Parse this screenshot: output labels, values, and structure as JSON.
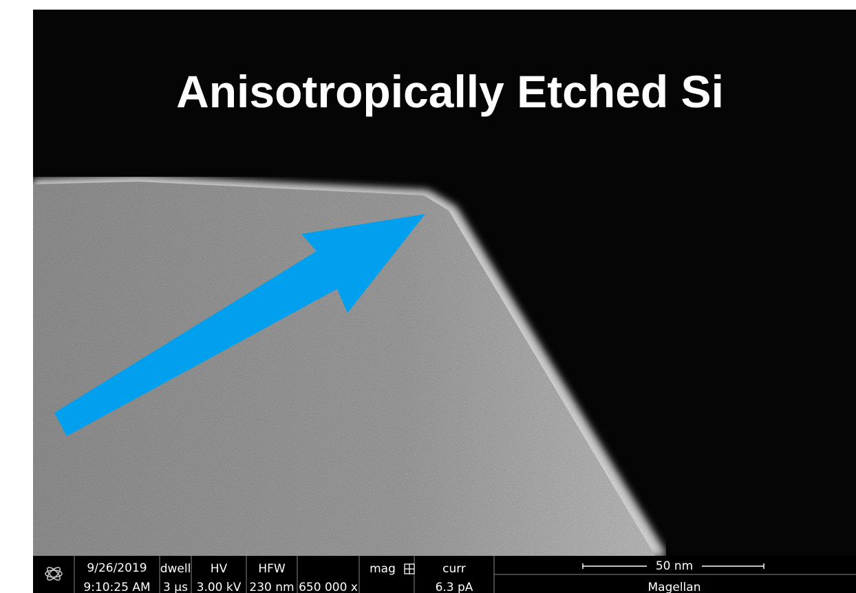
{
  "title": "Anisotropically Etched Si",
  "info_bar": {
    "date": "9/26/2019",
    "time": "9:10:25 AM",
    "fields": [
      {
        "label": "dwell",
        "value": "3 µs"
      },
      {
        "label": "HV",
        "value": "3.00 kV"
      },
      {
        "label": "HFW",
        "value": "230 nm"
      },
      {
        "label": "mag",
        "value": "650 000 x"
      },
      {
        "label": "curr",
        "value": "6.3 pA"
      }
    ],
    "scale_bar": "50 nm",
    "instrument": "Magellan"
  }
}
